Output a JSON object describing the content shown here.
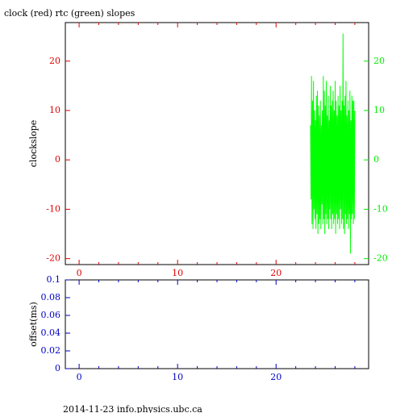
{
  "chart_data": [
    {
      "type": "line",
      "title": "clock (red) rtc (green) slopes",
      "ylabel": "clockslope",
      "xlim": [
        -1.4,
        29.4
      ],
      "ylim": [
        -21.2,
        27.8
      ],
      "y2lim": [
        -21.2,
        27.8
      ],
      "xticks": [
        0,
        10,
        20
      ],
      "xminorticks": [
        2,
        4,
        6,
        8,
        12,
        14,
        16,
        18,
        22,
        24,
        26,
        28
      ],
      "yticks": [
        -20,
        -10,
        0,
        10,
        20
      ],
      "y2ticks": [
        -20,
        -10,
        0,
        10,
        20
      ],
      "axis_color": "#e00000",
      "y2_color": "#00ee00",
      "series": [
        {
          "color": "#00ff00",
          "axis": "y2",
          "x": [
            23.5,
            23.55,
            23.6,
            23.65,
            23.7,
            23.75,
            23.8,
            23.85,
            23.9,
            23.95,
            24.0,
            24.05,
            24.1,
            24.15,
            24.2,
            24.25,
            24.3,
            24.35,
            24.4,
            24.45,
            24.5,
            24.55,
            24.6,
            24.65,
            24.7,
            24.75,
            24.8,
            24.85,
            24.9,
            24.95,
            25.0,
            25.05,
            25.1,
            25.15,
            25.2,
            25.25,
            25.3,
            25.35,
            25.4,
            25.45,
            25.5,
            25.55,
            25.6,
            25.65,
            25.7,
            25.75,
            25.8,
            25.85,
            25.9,
            25.95,
            26.0,
            26.05,
            26.1,
            26.15,
            26.2,
            26.25,
            26.3,
            26.35,
            26.4,
            26.45,
            26.5,
            26.55,
            26.6,
            26.65,
            26.7,
            26.75,
            26.8,
            26.85,
            26.9,
            26.95,
            27.0,
            27.05,
            27.1,
            27.15,
            27.2,
            27.25,
            27.3,
            27.35,
            27.4,
            27.45,
            27.5,
            27.55,
            27.6,
            27.65,
            27.7,
            27.75,
            27.8,
            27.85,
            27.9,
            27.95,
            28.0
          ],
          "values": [
            7,
            -8,
            17,
            -13,
            12,
            -14,
            16,
            -10,
            10,
            -12,
            8,
            -14,
            13,
            -11,
            14,
            -15,
            11,
            -13,
            9,
            -12,
            12,
            -14,
            7,
            -9,
            10,
            -13,
            17,
            -12,
            14,
            -15,
            11,
            -11,
            16,
            -13,
            9,
            -12,
            13,
            -14,
            8,
            -10,
            15,
            -12,
            11,
            -14,
            12,
            -11,
            14,
            -13,
            10,
            -12,
            16,
            -15,
            12,
            -11,
            9,
            -13,
            13,
            -12,
            11,
            -14,
            15,
            -10,
            10,
            -13,
            12,
            -12,
            25.6,
            -14,
            11,
            -15,
            13,
            -11,
            16,
            -13,
            9,
            -12,
            12,
            -14,
            10,
            -11,
            14,
            -19,
            8,
            -12,
            13,
            -11,
            12,
            -13,
            12,
            -12,
            10
          ]
        }
      ]
    },
    {
      "type": "line",
      "ylabel": "offset(ms)",
      "xlim": [
        -1.4,
        29.4
      ],
      "ylim": [
        0,
        0.1
      ],
      "xticks": [
        0,
        10,
        20
      ],
      "xminorticks": [
        2,
        4,
        6,
        8,
        12,
        14,
        16,
        18,
        22,
        24,
        26,
        28
      ],
      "yticks": [
        0,
        0.02,
        0.04,
        0.06,
        0.08,
        0.1
      ],
      "axis_color": "#0000c0",
      "series": []
    }
  ],
  "footer": "2014-11-23 info.physics.ubc.ca"
}
